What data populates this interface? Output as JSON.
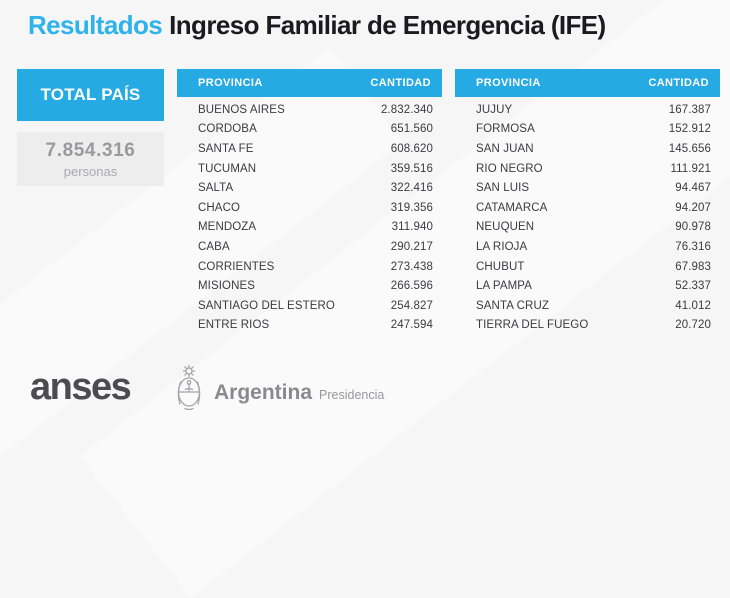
{
  "header": {
    "title_highlight": "Resultados",
    "title_rest": "Ingreso Familiar de Emergencia (IFE)"
  },
  "summary": {
    "label": "TOTAL PAÍS",
    "value": "7.854.316",
    "unit": "personas"
  },
  "tables": {
    "col_province": "PROVINCIA",
    "col_quantity": "CANTIDAD",
    "left_rows": [
      [
        "BUENOS AIRES",
        "2.832.340"
      ],
      [
        "CORDOBA",
        "651.560"
      ],
      [
        "SANTA FE",
        "608.620"
      ],
      [
        "TUCUMAN",
        "359.516"
      ],
      [
        "SALTA",
        "322.416"
      ],
      [
        "CHACO",
        "319.356"
      ],
      [
        "MENDOZA",
        "311.940"
      ],
      [
        "CABA",
        "290.217"
      ],
      [
        "CORRIENTES",
        "273.438"
      ],
      [
        "MISIONES",
        "266.596"
      ],
      [
        "SANTIAGO DEL ESTERO",
        "254.827"
      ],
      [
        "ENTRE RIOS",
        "247.594"
      ]
    ],
    "right_rows": [
      [
        "JUJUY",
        "167.387"
      ],
      [
        "FORMOSA",
        "152.912"
      ],
      [
        "SAN JUAN",
        "145.656"
      ],
      [
        "RIO NEGRO",
        "111.921"
      ],
      [
        "SAN LUIS",
        "94.467"
      ],
      [
        "CATAMARCA",
        "94.207"
      ],
      [
        "NEUQUEN",
        "90.978"
      ],
      [
        "LA RIOJA",
        "76.316"
      ],
      [
        "CHUBUT",
        "67.983"
      ],
      [
        "LA PAMPA",
        "52.337"
      ],
      [
        "SANTA CRUZ",
        "41.012"
      ],
      [
        "TIERRA DEL FUEGO",
        "20.720"
      ]
    ]
  },
  "footer": {
    "anses": "anses",
    "argentina": "Argentina",
    "presidencia": "Presidencia"
  },
  "colors": {
    "accent_blue": "#25aae3",
    "title_blue": "#2fb3ea",
    "title_dark": "#1b1b1d",
    "row_text": "#3c3c3e",
    "total_bg": "#ededee",
    "total_value": "#9a9a9c",
    "total_unit": "#ababad",
    "anses_gray": "#4c4c4e",
    "arg_gray": "#8a8a8c",
    "pres_gray": "#98989a",
    "escudo_gray": "#a5a5a7",
    "page_bg": "#f6f6f7"
  },
  "chart_data": {
    "type": "table",
    "title": "Resultados Ingreso Familiar de Emergencia (IFE)",
    "columns": [
      "PROVINCIA",
      "CANTIDAD"
    ],
    "total": {
      "label": "TOTAL PAÍS",
      "value": 7854316,
      "unit": "personas"
    },
    "rows": [
      [
        "BUENOS AIRES",
        2832340
      ],
      [
        "CORDOBA",
        651560
      ],
      [
        "SANTA FE",
        608620
      ],
      [
        "TUCUMAN",
        359516
      ],
      [
        "SALTA",
        322416
      ],
      [
        "CHACO",
        319356
      ],
      [
        "MENDOZA",
        311940
      ],
      [
        "CABA",
        290217
      ],
      [
        "CORRIENTES",
        273438
      ],
      [
        "MISIONES",
        266596
      ],
      [
        "SANTIAGO DEL ESTERO",
        254827
      ],
      [
        "ENTRE RIOS",
        247594
      ],
      [
        "JUJUY",
        167387
      ],
      [
        "FORMOSA",
        152912
      ],
      [
        "SAN JUAN",
        145656
      ],
      [
        "RIO NEGRO",
        111921
      ],
      [
        "SAN LUIS",
        94467
      ],
      [
        "CATAMARCA",
        94207
      ],
      [
        "NEUQUEN",
        90978
      ],
      [
        "LA RIOJA",
        76316
      ],
      [
        "CHUBUT",
        67983
      ],
      [
        "LA PAMPA",
        52337
      ],
      [
        "SANTA CRUZ",
        41012
      ],
      [
        "TIERRA DEL FUEGO",
        20720
      ]
    ]
  }
}
